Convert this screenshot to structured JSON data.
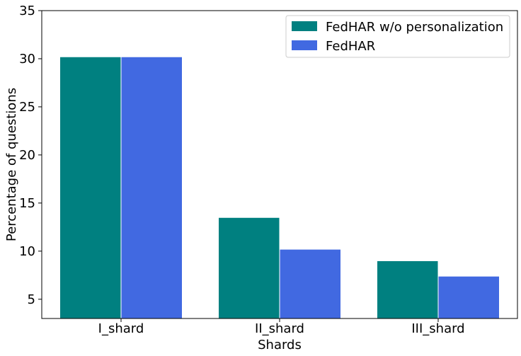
{
  "chart_data": {
    "type": "bar",
    "title": "",
    "xlabel": "Shards",
    "ylabel": "Percentage of questions",
    "categories": [
      "I_shard",
      "II_shard",
      "III_shard"
    ],
    "series": [
      {
        "name": "FedHAR w/o personalization",
        "color": "#008080",
        "values": [
          30.2,
          13.5,
          9.0
        ]
      },
      {
        "name": "FedHAR",
        "color": "#4169e1",
        "values": [
          30.2,
          10.2,
          7.4
        ]
      }
    ],
    "ylim": [
      3,
      35
    ],
    "yticks": [
      5,
      10,
      15,
      20,
      25,
      30,
      35
    ],
    "grid": false,
    "legend_position": "top-right"
  }
}
